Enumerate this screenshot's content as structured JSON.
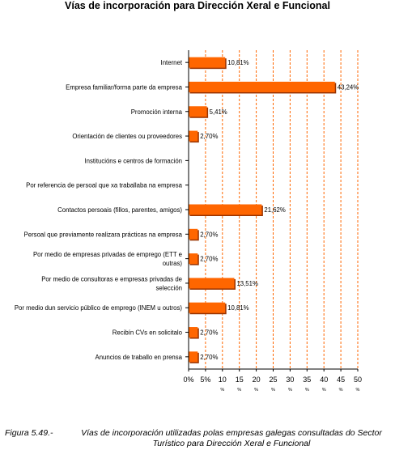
{
  "chart_data": {
    "type": "bar",
    "orientation": "horizontal",
    "title": "Vías de incorporación para Dirección Xeral e Funcional",
    "categories": [
      "Internet",
      "Empresa familiar/forma parte da empresa",
      "Promoción interna",
      "Orientación de clientes ou proveedores",
      "Institucións e centros de formación",
      "Por referencia de persoal que xa traballaba na empresa",
      "Contactos persoais (fillos, parentes, amigos)",
      "Persoal que previamente realizara prácticas na empresa",
      "Por medio de empresas privadas de emprego (ETT e outras)",
      "Por medio de consultoras e empresas privadas de selección",
      "Por medio dun servicio público de emprego (INEM u outros)",
      "Recibín CVs en solicitalo",
      "Anuncios de traballo en prensa"
    ],
    "category_lines": [
      [
        "Internet"
      ],
      [
        "Empresa familiar/forma parte da empresa"
      ],
      [
        "Promoción interna"
      ],
      [
        "Orientación de clientes ou proveedores"
      ],
      [
        "Institucións e centros de formación"
      ],
      [
        "Por referencia de persoal que xa traballaba na empresa"
      ],
      [
        "Contactos persoais (fillos, parentes, amigos)"
      ],
      [
        "Persoal que previamente realizara prácticas na empresa"
      ],
      [
        "Por medio de empresas privadas de emprego (ETT e",
        "outras)"
      ],
      [
        "Por medio de consultoras e empresas privadas de",
        "selección"
      ],
      [
        "Por medio dun servicio público de emprego (INEM u outros)"
      ],
      [
        "Recibín CVs en solicitalo"
      ],
      [
        "Anuncios de traballo en prensa"
      ]
    ],
    "values": [
      10.81,
      43.24,
      5.41,
      2.7,
      0,
      0,
      21.62,
      2.7,
      2.7,
      13.51,
      10.81,
      2.7,
      2.7
    ],
    "data_labels": [
      "10,81%",
      "43,24%",
      "5,41%",
      "2,70%",
      "",
      "",
      "21,62%",
      "2,70%",
      "2,70%",
      "13,51%",
      "10,81%",
      "2,70%",
      "2,70%"
    ],
    "xlim": [
      0,
      50
    ],
    "x_ticks": [
      0,
      5,
      10,
      15,
      20,
      25,
      30,
      35,
      40,
      45,
      50
    ],
    "x_tick_labels": [
      "0%",
      "5%",
      "10",
      "15",
      "20",
      "25",
      "30",
      "35",
      "40",
      "45",
      "50"
    ],
    "x_tick_suffix": "%",
    "xlabel": "",
    "ylabel": "",
    "grid": "vertical dashed",
    "legend": "none",
    "colors": {
      "bar": "#ff6600",
      "bar_shadow": "#993300",
      "grid": "#ff6600",
      "axis": "#000000"
    }
  },
  "caption": {
    "label": "Figura 5.49.-",
    "line1": "Vías de incorporación utilizadas polas empresas galegas consultadas do Sector",
    "line2": "Turístico para Dirección Xeral e Funcional"
  }
}
